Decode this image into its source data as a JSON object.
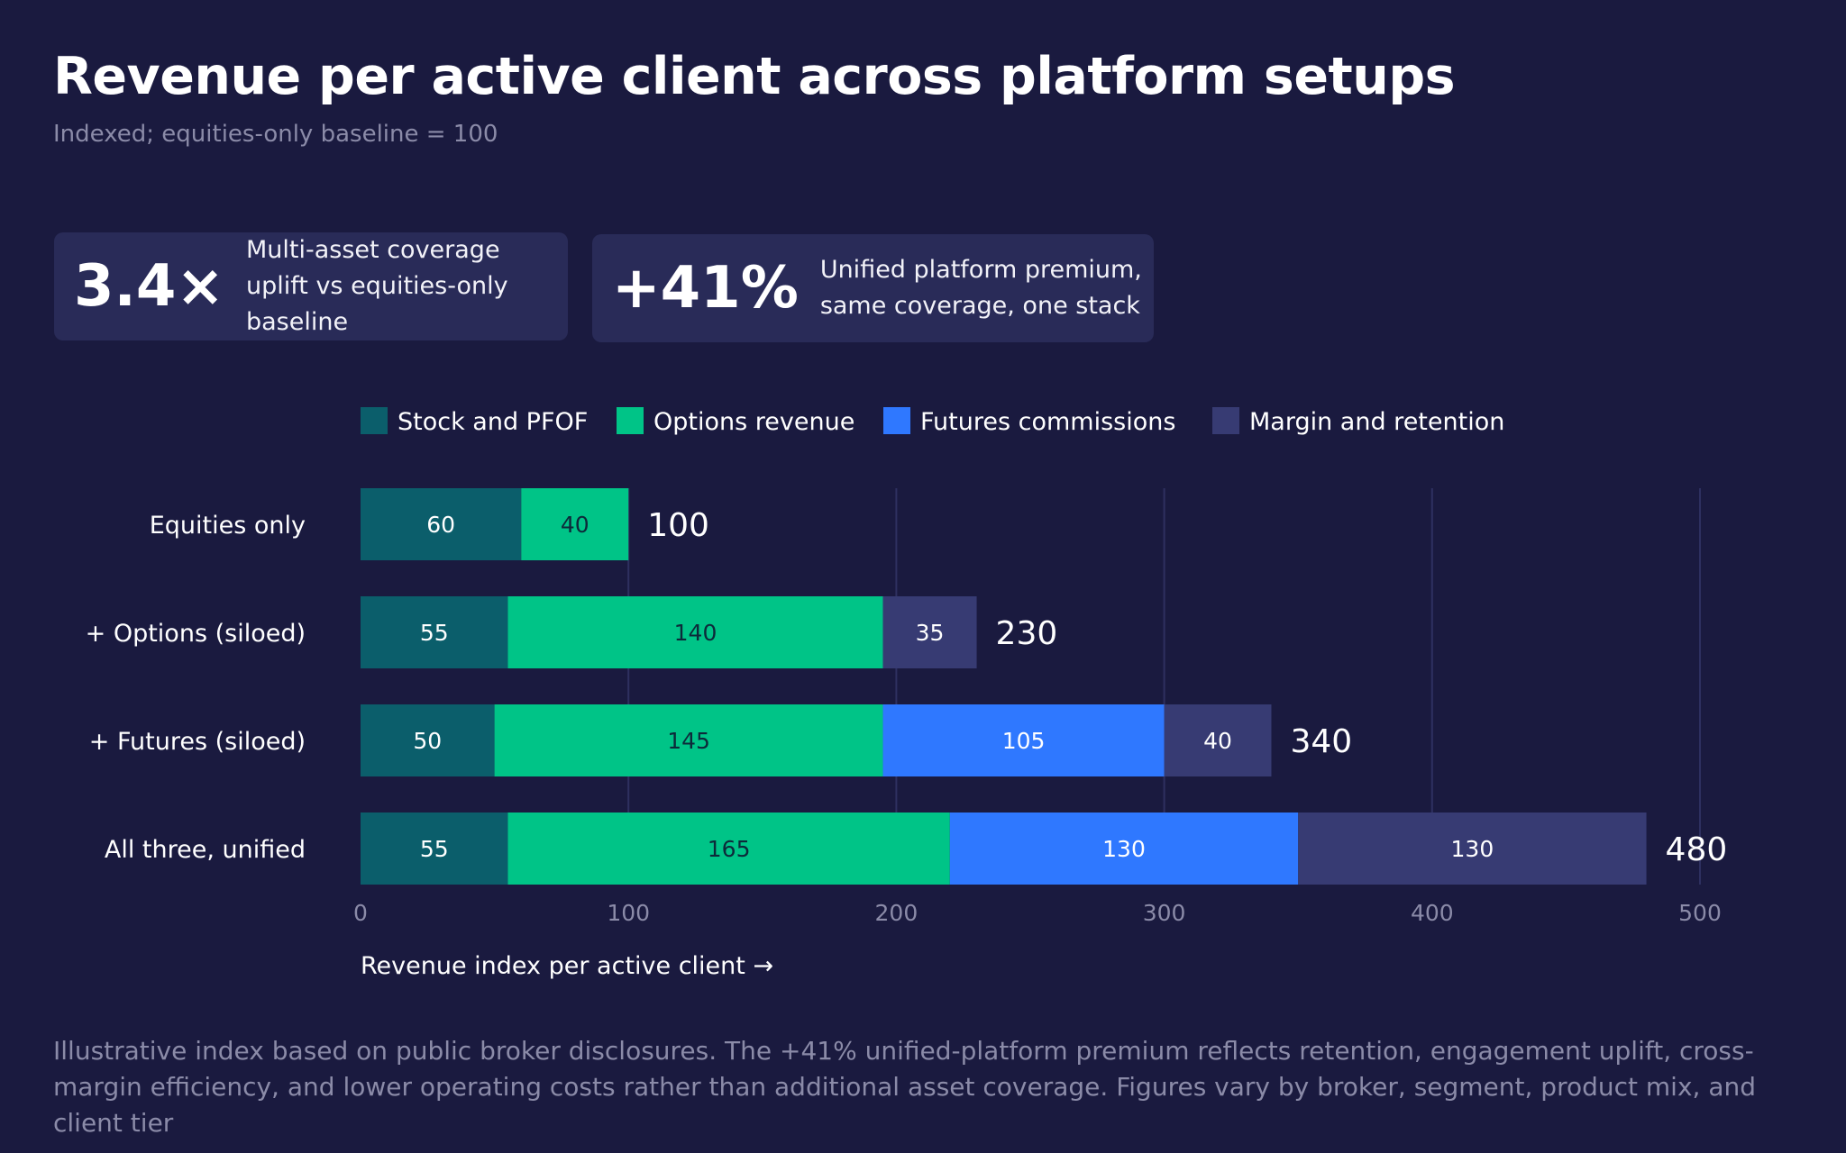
{
  "header": {
    "title": "Revenue per active client across platform setups",
    "subtitle": "Indexed; equities-only baseline = 100"
  },
  "kpis": [
    {
      "value": "3.4×",
      "description": "Multi-asset coverage uplift vs equities-only baseline"
    },
    {
      "value": "+41%",
      "description": "Unified platform premium, same coverage, one stack"
    }
  ],
  "chart_data": {
    "type": "bar",
    "orientation": "horizontal",
    "stacked": true,
    "categories": [
      "Equities only",
      "+ Options (siloed)",
      "+ Futures (siloed)",
      "All three, unified"
    ],
    "series": [
      {
        "name": "Stock and PFOF",
        "color": "#0b5e6b",
        "values": [
          60,
          55,
          50,
          55
        ]
      },
      {
        "name": "Options revenue",
        "color": "#00c487",
        "values": [
          40,
          140,
          145,
          165
        ]
      },
      {
        "name": "Futures commissions",
        "color": "#2f78ff",
        "values": [
          0,
          0,
          105,
          130
        ]
      },
      {
        "name": "Margin and retention",
        "color": "#373b73",
        "values": [
          0,
          35,
          40,
          130
        ]
      }
    ],
    "totals": [
      "100",
      "230",
      "340",
      "480"
    ],
    "xlabel": "Revenue index per active client →",
    "xlim": [
      0,
      500
    ],
    "xticks": [
      "0",
      "100",
      "200",
      "300",
      "400",
      "500"
    ],
    "grid": true,
    "legend_position": "top"
  },
  "footnote": "Illustrative index based on public broker disclosures. The +41% unified-platform premium reflects retention, engagement uplift, cross-margin efficiency, and lower operating costs rather than additional asset coverage. Figures vary by broker, segment, product mix, and client tier"
}
